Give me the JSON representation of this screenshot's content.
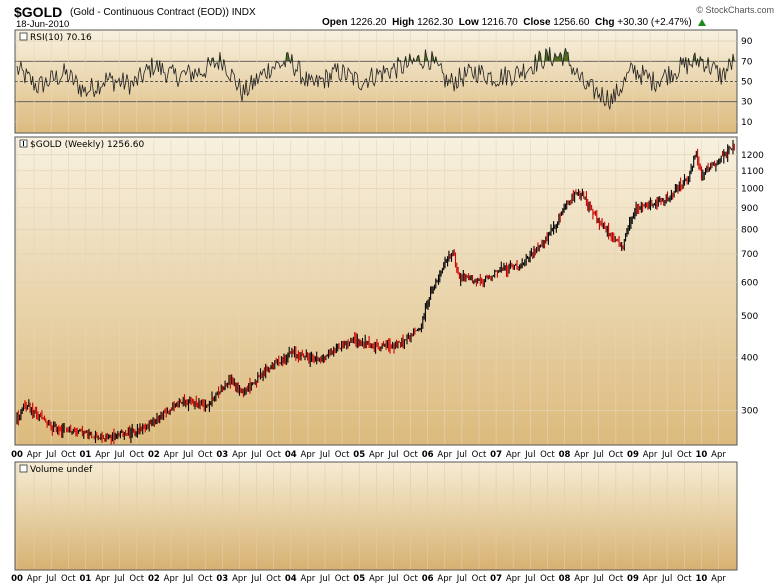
{
  "header": {
    "symbol": "$GOLD",
    "description": "(Gold - Continuous Contract (EOD))",
    "exchange": "INDX",
    "date": "18-Jun-2010",
    "brand": "© StockCharts.com",
    "open_label": "Open",
    "open": "1226.20",
    "high_label": "High",
    "high": "1262.30",
    "low_label": "Low",
    "low": "1216.70",
    "close_label": "Close",
    "close": "1256.60",
    "chg_label": "Chg",
    "chg": "+30.30 (+2.47%)"
  },
  "panels": {
    "rsi_label": "RSI(10) 70.16",
    "price_label": "$GOLD (Weekly) 1256.60",
    "volume_label": "Volume undef"
  },
  "colors": {
    "background_top": "#f7f0df",
    "background_bottom": "#d9b678",
    "up_bar": "#000000",
    "down_bar": "#cc0000",
    "rsi_fill": "#4e6b1f"
  },
  "chart_data": [
    {
      "type": "line",
      "title": "RSI(10) 70.16",
      "ylim": [
        0,
        100
      ],
      "yticks": [
        10,
        30,
        50,
        70,
        90
      ],
      "reference_lines": [
        30,
        50,
        70
      ],
      "last": 70.16,
      "series": [
        {
          "name": "RSI(10)",
          "x": [
            2000.0,
            2000.3,
            2000.7,
            2001.0,
            2001.3,
            2001.7,
            2002.0,
            2002.3,
            2002.7,
            2003.0,
            2003.3,
            2003.7,
            2004.0,
            2004.3,
            2004.7,
            2005.0,
            2005.3,
            2005.7,
            2006.0,
            2006.3,
            2006.7,
            2007.0,
            2007.3,
            2007.7,
            2008.0,
            2008.3,
            2008.7,
            2009.0,
            2009.3,
            2009.7,
            2010.0,
            2010.3,
            2010.47
          ],
          "values": [
            62,
            45,
            58,
            40,
            52,
            47,
            66,
            55,
            60,
            72,
            38,
            64,
            70,
            45,
            60,
            50,
            58,
            66,
            75,
            48,
            60,
            54,
            58,
            73,
            76,
            45,
            32,
            62,
            50,
            64,
            72,
            55,
            70.16
          ]
        }
      ]
    },
    {
      "type": "line",
      "title": "$GOLD (Weekly) 1256.60",
      "yscale": "log",
      "ylim": [
        250,
        1300
      ],
      "yticks": [
        300,
        400,
        500,
        600,
        700,
        800,
        900,
        1000,
        1100,
        1200
      ],
      "last": 1256.6,
      "series": [
        {
          "name": "$GOLD",
          "x": [
            2000.0,
            2000.1,
            2000.5,
            2001.0,
            2001.3,
            2001.8,
            2002.0,
            2002.4,
            2002.8,
            2003.1,
            2003.3,
            2003.7,
            2004.0,
            2004.4,
            2004.9,
            2005.2,
            2005.6,
            2005.9,
            2006.0,
            2006.37,
            2006.45,
            2006.8,
            2007.0,
            2007.4,
            2007.8,
            2008.0,
            2008.2,
            2008.4,
            2008.7,
            2008.85,
            2009.0,
            2009.2,
            2009.5,
            2009.8,
            2009.92,
            2010.0,
            2010.1,
            2010.3,
            2010.47
          ],
          "values": [
            285,
            310,
            275,
            265,
            258,
            270,
            282,
            315,
            310,
            355,
            330,
            380,
            410,
            395,
            440,
            425,
            430,
            470,
            540,
            715,
            620,
            600,
            640,
            660,
            780,
            900,
            1000,
            880,
            760,
            720,
            880,
            920,
            940,
            1050,
            1200,
            1080,
            1120,
            1180,
            1256.6
          ]
        }
      ]
    },
    {
      "type": "bar",
      "title": "Volume undef",
      "values": []
    }
  ],
  "x_axis": {
    "labels": [
      {
        "t": 2000.0,
        "text": "00",
        "bold": true
      },
      {
        "t": 2000.25,
        "text": "Apr"
      },
      {
        "t": 2000.5,
        "text": "Jul"
      },
      {
        "t": 2000.75,
        "text": "Oct"
      },
      {
        "t": 2001.0,
        "text": "01",
        "bold": true
      },
      {
        "t": 2001.25,
        "text": "Apr"
      },
      {
        "t": 2001.5,
        "text": "Jul"
      },
      {
        "t": 2001.75,
        "text": "Oct"
      },
      {
        "t": 2002.0,
        "text": "02",
        "bold": true
      },
      {
        "t": 2002.25,
        "text": "Apr"
      },
      {
        "t": 2002.5,
        "text": "Jul"
      },
      {
        "t": 2002.75,
        "text": "Oct"
      },
      {
        "t": 2003.0,
        "text": "03",
        "bold": true
      },
      {
        "t": 2003.25,
        "text": "Apr"
      },
      {
        "t": 2003.5,
        "text": "Jul"
      },
      {
        "t": 2003.75,
        "text": "Oct"
      },
      {
        "t": 2004.0,
        "text": "04",
        "bold": true
      },
      {
        "t": 2004.25,
        "text": "Apr"
      },
      {
        "t": 2004.5,
        "text": "Jul"
      },
      {
        "t": 2004.75,
        "text": "Oct"
      },
      {
        "t": 2005.0,
        "text": "05",
        "bold": true
      },
      {
        "t": 2005.25,
        "text": "Apr"
      },
      {
        "t": 2005.5,
        "text": "Jul"
      },
      {
        "t": 2005.75,
        "text": "Oct"
      },
      {
        "t": 2006.0,
        "text": "06",
        "bold": true
      },
      {
        "t": 2006.25,
        "text": "Apr"
      },
      {
        "t": 2006.5,
        "text": "Jul"
      },
      {
        "t": 2006.75,
        "text": "Oct"
      },
      {
        "t": 2007.0,
        "text": "07",
        "bold": true
      },
      {
        "t": 2007.25,
        "text": "Apr"
      },
      {
        "t": 2007.5,
        "text": "Jul"
      },
      {
        "t": 2007.75,
        "text": "Oct"
      },
      {
        "t": 2008.0,
        "text": "08",
        "bold": true
      },
      {
        "t": 2008.25,
        "text": "Apr"
      },
      {
        "t": 2008.5,
        "text": "Jul"
      },
      {
        "t": 2008.75,
        "text": "Oct"
      },
      {
        "t": 2009.0,
        "text": "09",
        "bold": true
      },
      {
        "t": 2009.25,
        "text": "Apr"
      },
      {
        "t": 2009.5,
        "text": "Jul"
      },
      {
        "t": 2009.75,
        "text": "Oct"
      },
      {
        "t": 2010.0,
        "text": "10",
        "bold": true
      },
      {
        "t": 2010.25,
        "text": "Apr"
      }
    ]
  }
}
